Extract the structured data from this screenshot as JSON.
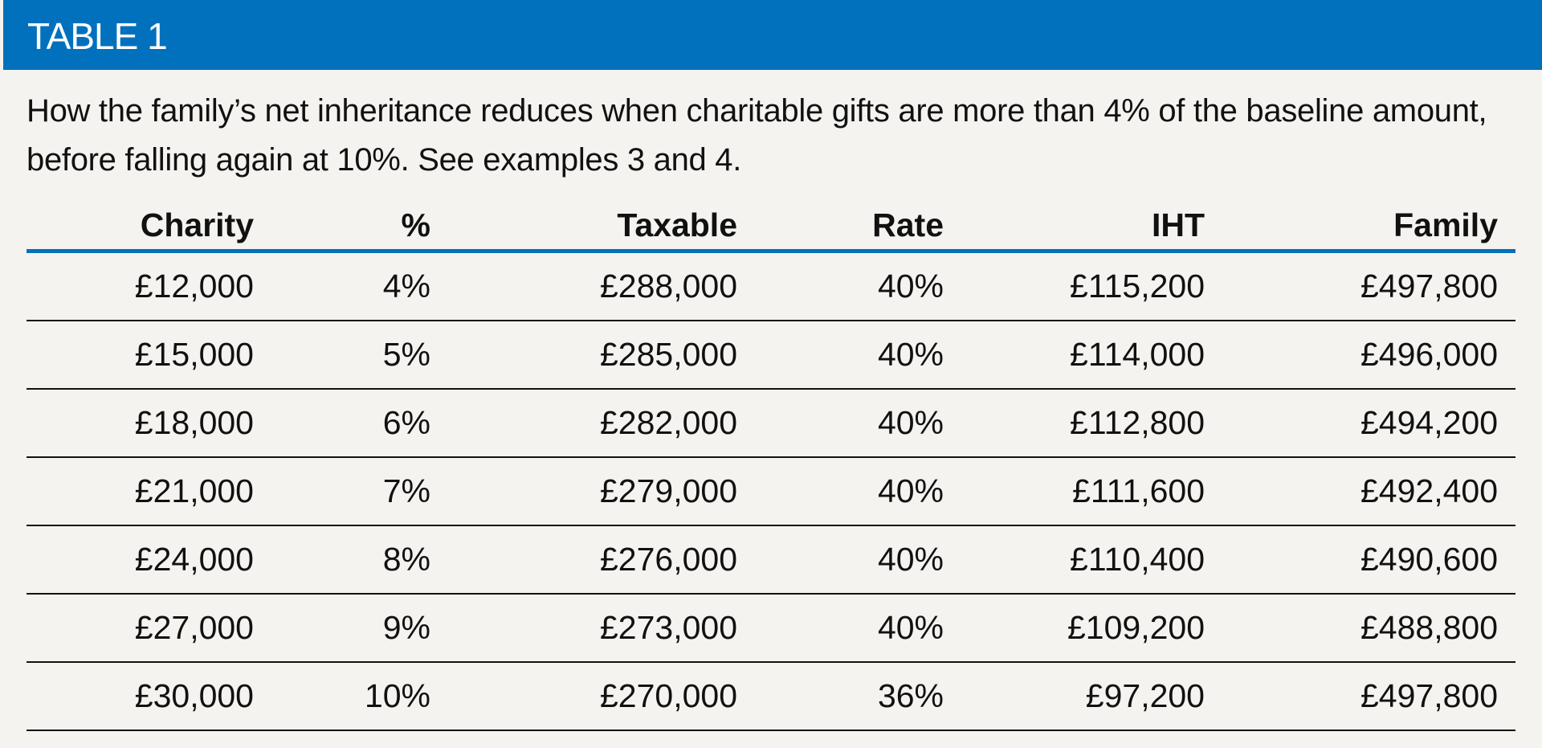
{
  "title": "TABLE 1",
  "caption": "How the family’s net inheritance reduces when charitable gifts are more than 4% of the baseline amount, before falling again at 10%. See examples 3 and 4.",
  "colors": {
    "header": "#0171bd",
    "background": "#f4f3f0"
  },
  "columns": [
    "Charity",
    "%",
    "Taxable",
    "Rate",
    "IHT",
    "Family"
  ],
  "rows": [
    [
      "£12,000",
      "4%",
      "£288,000",
      "40%",
      "£115,200",
      "£497,800"
    ],
    [
      "£15,000",
      "5%",
      "£285,000",
      "40%",
      "£114,000",
      "£496,000"
    ],
    [
      "£18,000",
      "6%",
      "£282,000",
      "40%",
      "£112,800",
      "£494,200"
    ],
    [
      "£21,000",
      "7%",
      "£279,000",
      "40%",
      "£111,600",
      "£492,400"
    ],
    [
      "£24,000",
      "8%",
      "£276,000",
      "40%",
      "£110,400",
      "£490,600"
    ],
    [
      "£27,000",
      "9%",
      "£273,000",
      "40%",
      "£109,200",
      "£488,800"
    ],
    [
      "£30,000",
      "10%",
      "£270,000",
      "36%",
      "£97,200",
      "£497,800"
    ]
  ]
}
